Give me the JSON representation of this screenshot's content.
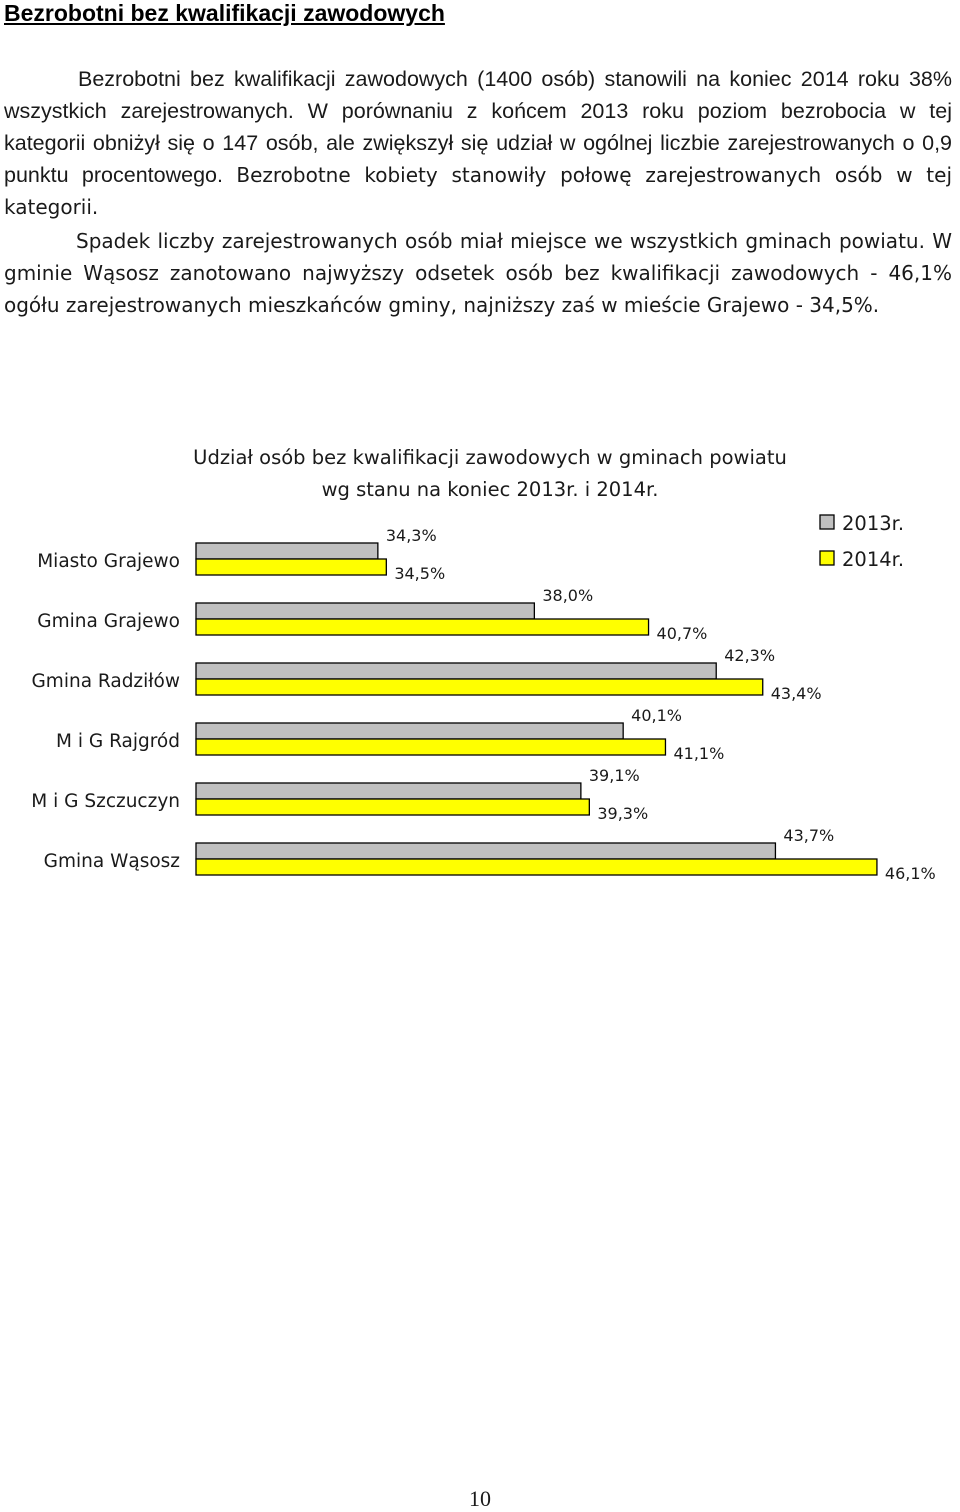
{
  "heading": "Bezrobotni bez kwalifikacji zawodowych",
  "paragraph1": {
    "text": "Bezrobotni bez kwalifikacji zawodowych (1400 osób) stanowili na koniec 2014 roku 38% wszystkich zarejestrowanych. W porównaniu z końcem 2013 roku poziom bezrobocia w tej kategorii obniżył się o 147 osób, ale zwiększył się udział w ogólnej liczbie zarejestrowanych o 0,9 punktu procentowego.",
    "tail": "Bezrobotne kobiety stanowiły połowę zarejestrowanych osób w tej kategorii."
  },
  "paragraph2": "Spadek liczby zarejestrowanych osób miał miejsce we wszystkich gminach powiatu. W gminie Wąsosz zanotowano najwyższy odsetek osób bez kwalifikacji zawodowych - 46,1% ogółu zarejestrowanych mieszkańców gminy, najniższy zaś w mieście Grajewo - 34,5%.",
  "page_number": "10",
  "chart_data": {
    "type": "bar",
    "orientation": "horizontal",
    "title": "Udział osób bez kwalifikacji zawodowych w gminach powiatu\nwg stanu na koniec 2013r. i 2014r.",
    "title_lines": [
      "Udział osób bez kwalifikacji zawodowych w gminach powiatu",
      "wg stanu na koniec 2013r. i 2014r."
    ],
    "categories": [
      "Miasto Grajewo",
      "Gmina Grajewo",
      "Gmina Radziłów",
      "M i G Rajgród",
      "M i G Szczuczyn",
      "Gmina Wąsosz"
    ],
    "series": [
      {
        "name": "2013r.",
        "values": [
          34.3,
          38.0,
          42.3,
          40.1,
          39.1,
          43.7
        ],
        "labels": [
          "34,3%",
          "38,0%",
          "42,3%",
          "40,1%",
          "39,1%",
          "43,7%"
        ],
        "color": "#c0c0c0"
      },
      {
        "name": "2014r.",
        "values": [
          34.5,
          40.7,
          43.4,
          41.1,
          39.3,
          46.1
        ],
        "labels": [
          "34,5%",
          "40,7%",
          "43,4%",
          "41,1%",
          "39,3%",
          "46,1%"
        ],
        "color": "#ffff00"
      }
    ],
    "xlim": [
      30,
      47
    ],
    "legend": "top-right",
    "grid": false
  }
}
